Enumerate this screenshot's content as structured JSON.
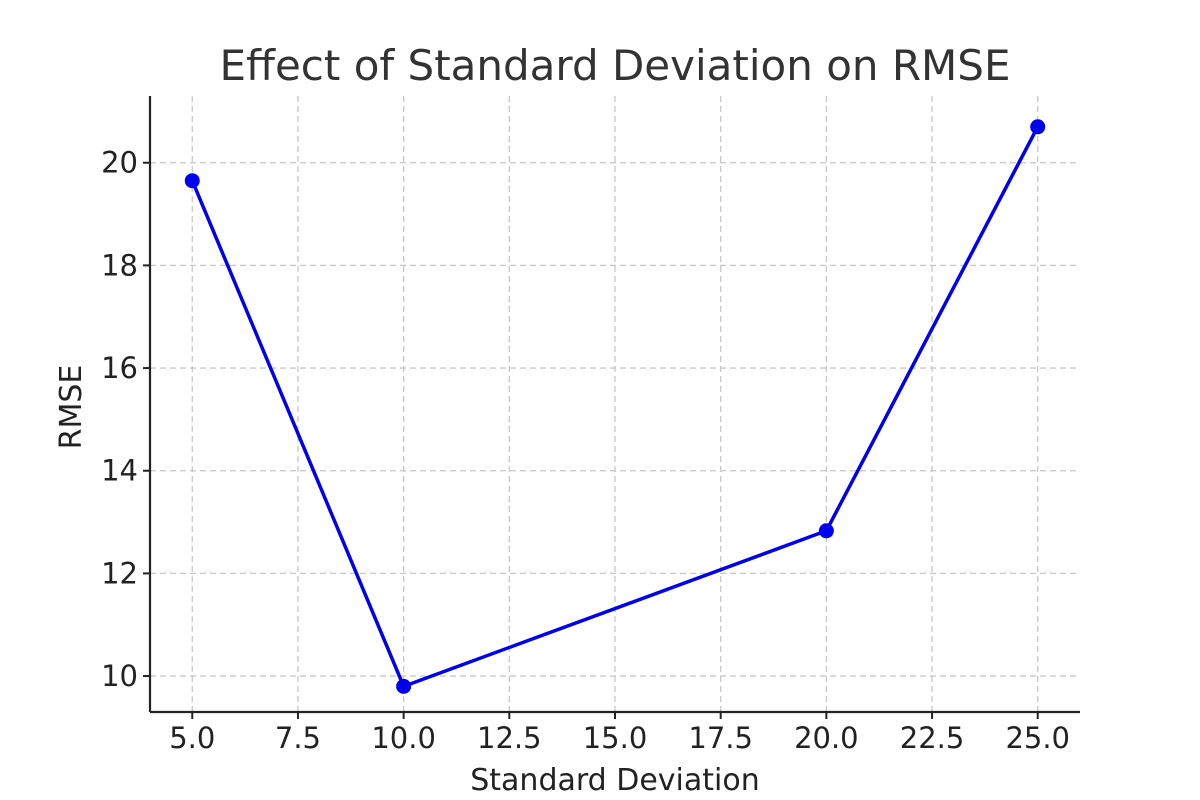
{
  "chart_data": {
    "type": "line",
    "title": "Effect of Standard Deviation on RMSE",
    "xlabel": "Standard Deviation",
    "ylabel": "RMSE",
    "xlim": [
      4.0,
      26.0
    ],
    "ylim": [
      9.3,
      21.3
    ],
    "xticks": [
      5.0,
      7.5,
      10.0,
      12.5,
      15.0,
      17.5,
      20.0,
      22.5,
      25.0
    ],
    "xtick_labels": [
      "5.0",
      "7.5",
      "10.0",
      "12.5",
      "15.0",
      "17.5",
      "20.0",
      "22.5",
      "25.0"
    ],
    "yticks": [
      10,
      12,
      14,
      16,
      18,
      20
    ],
    "ytick_labels": [
      "10",
      "12",
      "14",
      "16",
      "18",
      "20"
    ],
    "grid": true,
    "series": [
      {
        "x": [
          5,
          10,
          20,
          25
        ],
        "y": [
          19.65,
          9.8,
          12.83,
          20.7
        ],
        "color": "#0000ee",
        "marker": "circle"
      }
    ]
  }
}
